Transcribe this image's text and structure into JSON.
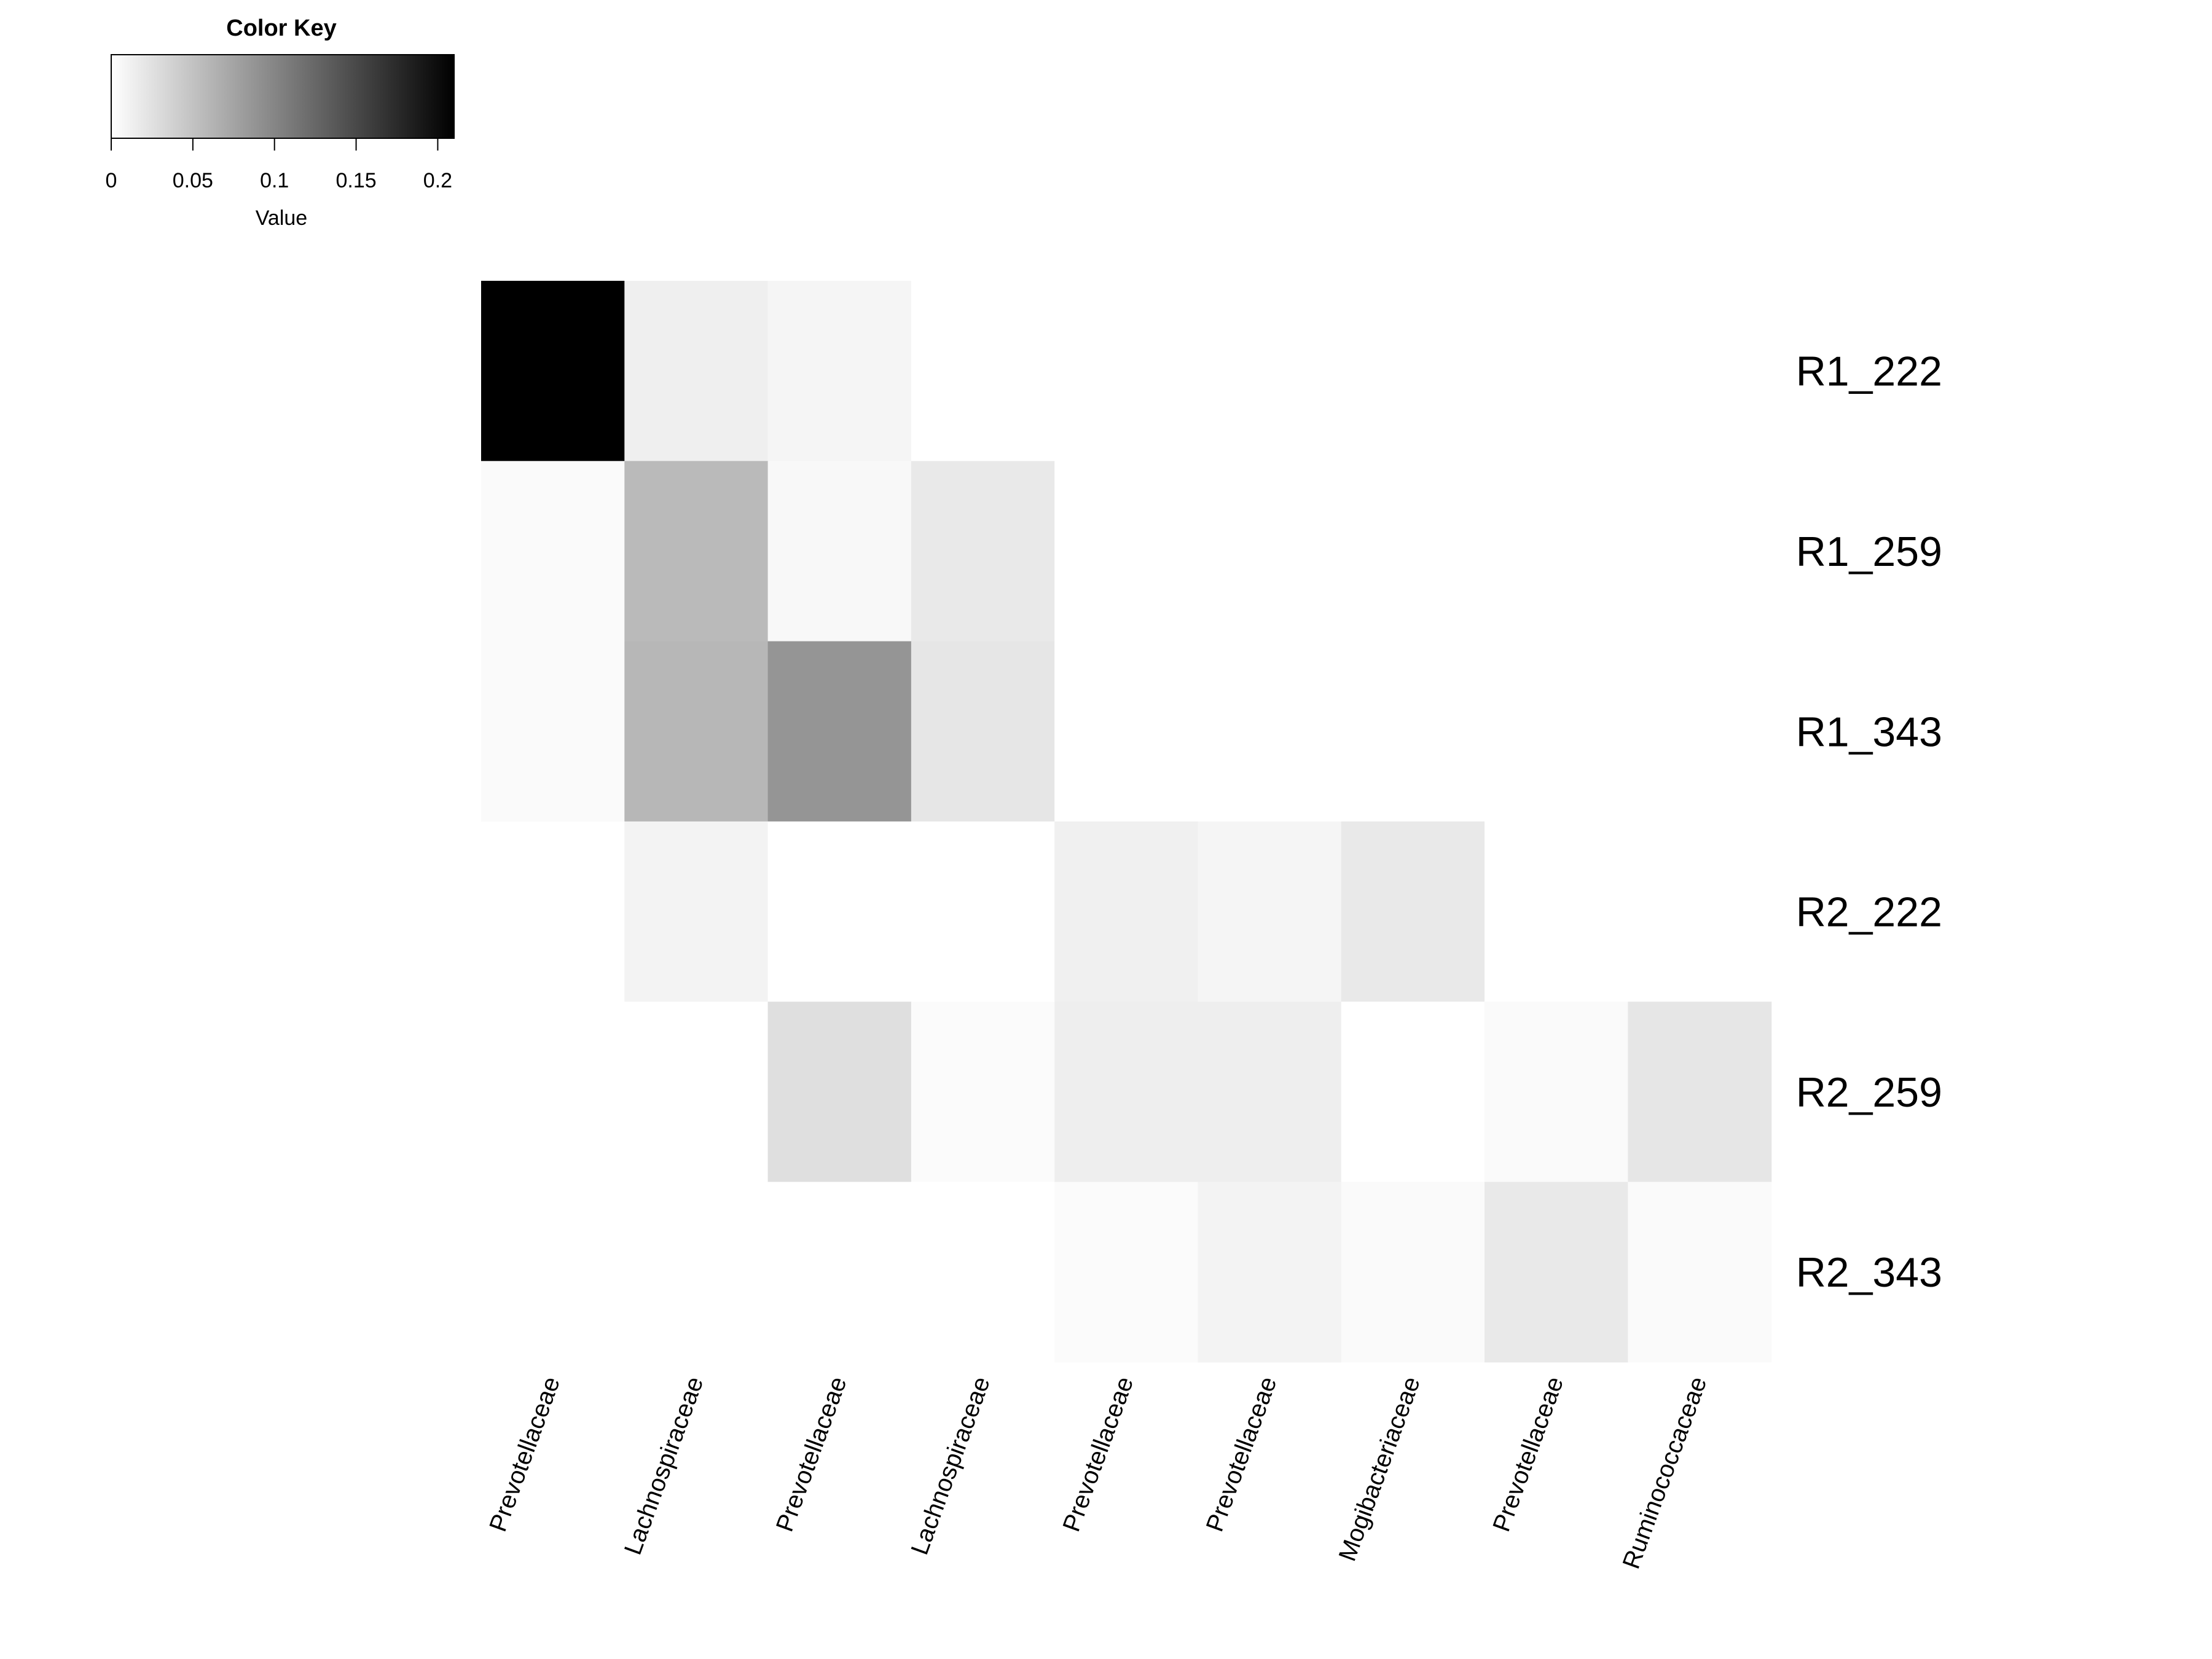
{
  "chart_data": {
    "type": "heatmap",
    "color_key": {
      "title": "Color Key",
      "xlabel": "Value",
      "range": [
        0,
        0.21
      ],
      "ticks": [
        0,
        0.05,
        0.1,
        0.15,
        0.2
      ],
      "tick_labels": [
        "0",
        "0.05",
        "0.1",
        "0.15",
        "0.2"
      ],
      "low_color": "#ffffff",
      "high_color": "#000000"
    },
    "rows": [
      "R1_222",
      "R1_259",
      "R1_343",
      "R2_222",
      "R2_259",
      "R2_343"
    ],
    "columns": [
      "Prevotellaceae",
      "Lachnospiraceae",
      "Prevotellaceae",
      "Lachnospiraceae",
      "Prevotellaceae",
      "Prevotellaceae",
      "Mogibacteriaceae",
      "Prevotellaceae",
      "Ruminococcaceae"
    ],
    "values": [
      [
        0.21,
        0.013,
        0.008,
        0,
        0,
        0,
        0,
        0,
        0
      ],
      [
        0.004,
        0.057,
        0.006,
        0.018,
        0,
        0,
        0,
        0,
        0
      ],
      [
        0.004,
        0.059,
        0.087,
        0.021,
        0,
        0,
        0,
        0,
        0
      ],
      [
        0,
        0.01,
        0,
        0,
        0.012,
        0.008,
        0.018,
        0,
        0
      ],
      [
        0,
        0,
        0.026,
        0.003,
        0.014,
        0.014,
        0,
        0.004,
        0.021
      ],
      [
        0,
        0,
        0,
        0,
        0.003,
        0.01,
        0.004,
        0.018,
        0.004
      ]
    ]
  }
}
